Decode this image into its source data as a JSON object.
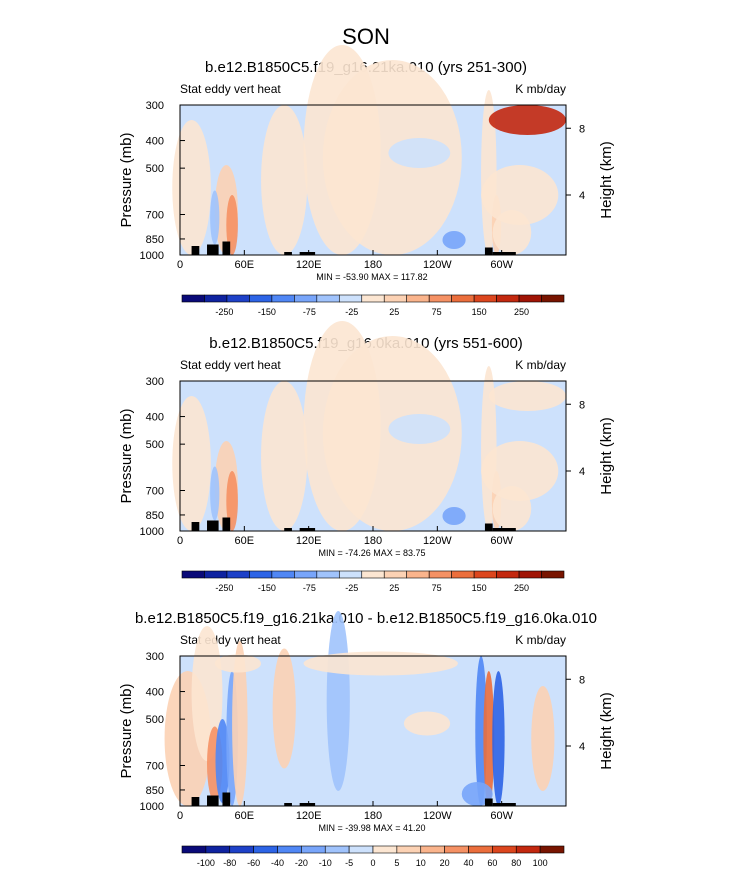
{
  "page_title": "SON",
  "chart_data": [
    {
      "type": "heatmap",
      "title": "b.e12.B1850C5.f19_g16.21ka.010 (yrs 251-300)",
      "left_label": "Stat eddy vert heat",
      "right_label": "K mb/day",
      "ylabel": "Pressure (mb)",
      "y2label": "Height (km)",
      "x_ticks": [
        "0",
        "60E",
        "120E",
        "180",
        "120W",
        "60W"
      ],
      "y_ticks": [
        "300",
        "400",
        "500",
        "700",
        "850",
        "1000"
      ],
      "y2_ticks": [
        "8",
        "4"
      ],
      "stats": "MIN = -53.90   MAX = 117.82",
      "colorbar": {
        "labels": [
          "-250",
          "-150",
          "-75",
          "-25",
          "25",
          "75",
          "150",
          "250"
        ],
        "colors": [
          "#0a0a78",
          "#0f23a0",
          "#1e41c8",
          "#2d64e6",
          "#5087f5",
          "#78a5fa",
          "#a0c3fc",
          "#cde1fc",
          "#fce6d2",
          "#fcd2b4",
          "#fab48c",
          "#f59164",
          "#eb6e3c",
          "#dc461e",
          "#c3280f",
          "#a01405",
          "#781400"
        ]
      }
    },
    {
      "type": "heatmap",
      "title": "b.e12.B1850C5.f19_g16.0ka.010 (yrs 551-600)",
      "left_label": "Stat eddy vert heat",
      "right_label": "K mb/day",
      "ylabel": "Pressure (mb)",
      "y2label": "Height (km)",
      "x_ticks": [
        "0",
        "60E",
        "120E",
        "180",
        "120W",
        "60W"
      ],
      "y_ticks": [
        "300",
        "400",
        "500",
        "700",
        "850",
        "1000"
      ],
      "y2_ticks": [
        "8",
        "4"
      ],
      "stats": "MIN = -74.26   MAX = 83.75",
      "colorbar": {
        "labels": [
          "-250",
          "-150",
          "-75",
          "-25",
          "25",
          "75",
          "150",
          "250"
        ],
        "colors": [
          "#0a0a78",
          "#0f23a0",
          "#1e41c8",
          "#2d64e6",
          "#5087f5",
          "#78a5fa",
          "#a0c3fc",
          "#cde1fc",
          "#fce6d2",
          "#fcd2b4",
          "#fab48c",
          "#f59164",
          "#eb6e3c",
          "#dc461e",
          "#c3280f",
          "#a01405",
          "#781400"
        ]
      }
    },
    {
      "type": "heatmap",
      "title": "b.e12.B1850C5.f19_g16.21ka.010 - b.e12.B1850C5.f19_g16.0ka.010",
      "left_label": "Stat eddy vert heat",
      "right_label": "K mb/day",
      "ylabel": "Pressure (mb)",
      "y2label": "Height (km)",
      "x_ticks": [
        "0",
        "60E",
        "120E",
        "180",
        "120W",
        "60W"
      ],
      "y_ticks": [
        "300",
        "400",
        "500",
        "700",
        "850",
        "1000"
      ],
      "y2_ticks": [
        "8",
        "4"
      ],
      "stats": "MIN = -39.98   MAX = 41.20",
      "colorbar": {
        "labels": [
          "-100",
          "-80",
          "-60",
          "-40",
          "-20",
          "-10",
          "-5",
          "0",
          "5",
          "10",
          "20",
          "40",
          "60",
          "80",
          "100"
        ],
        "colors": [
          "#0a0a78",
          "#0f23a0",
          "#1e41c8",
          "#2d64e6",
          "#5087f5",
          "#78a5fa",
          "#a0c3fc",
          "#cde1fc",
          "#fce6d2",
          "#fcd2b4",
          "#fab48c",
          "#f59164",
          "#eb6e3c",
          "#dc461e",
          "#c3280f",
          "#781400"
        ]
      }
    }
  ]
}
